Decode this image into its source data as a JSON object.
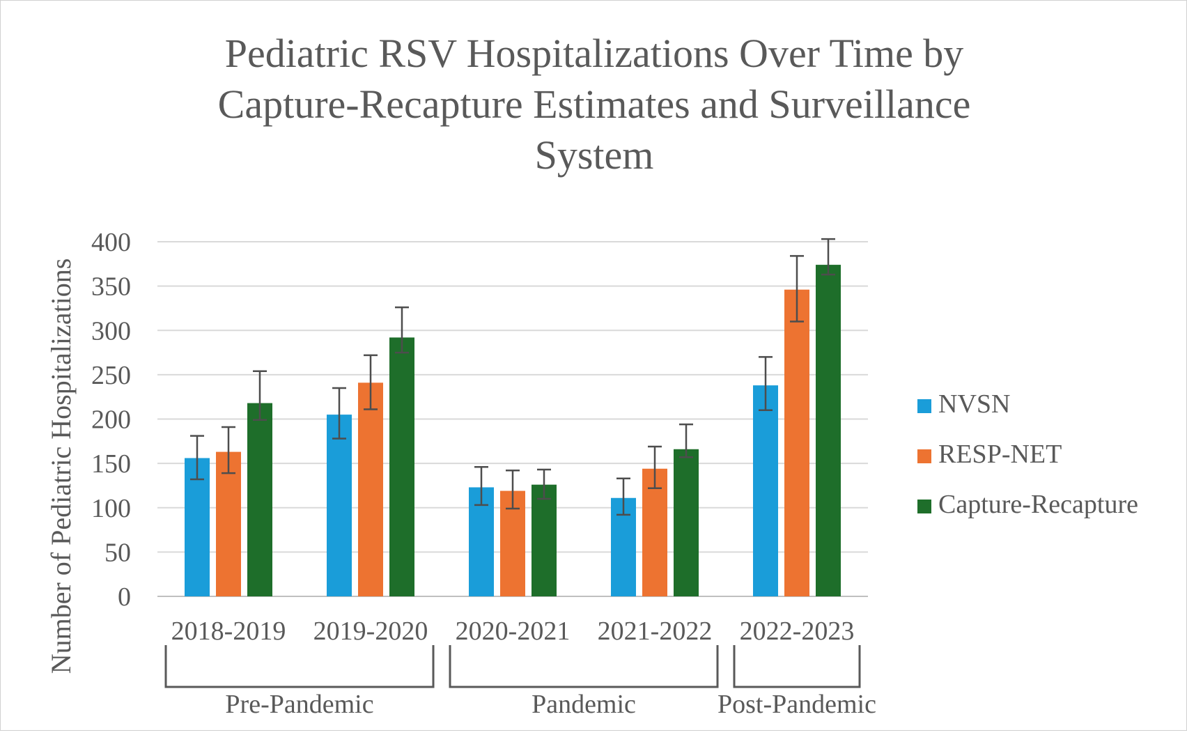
{
  "chart_data": {
    "type": "bar",
    "title_lines": [
      "Pediatric RSV Hospitalizations Over Time by",
      "Capture-Recapture Estimates and Surveillance",
      "System"
    ],
    "ylabel": "Number of Pediatric Hospitalizations",
    "xlabel": "",
    "ylim": [
      0,
      400
    ],
    "yticks": [
      0,
      50,
      100,
      150,
      200,
      250,
      300,
      350,
      400
    ],
    "grid": true,
    "legend_position": "right",
    "categories": [
      "2018-2019",
      "2019-2020",
      "2020-2021",
      "2021-2022",
      "2022-2023"
    ],
    "series": [
      {
        "name": "NVSN",
        "color": "#1a9dd9",
        "values": [
          156,
          205,
          123,
          111,
          238
        ],
        "err_low": [
          132,
          178,
          103,
          92,
          210
        ],
        "err_high": [
          181,
          235,
          146,
          133,
          270
        ]
      },
      {
        "name": "RESP-NET",
        "color": "#ed7331",
        "values": [
          163,
          241,
          119,
          144,
          346
        ],
        "err_low": [
          139,
          211,
          99,
          122,
          310
        ],
        "err_high": [
          191,
          272,
          142,
          169,
          384
        ]
      },
      {
        "name": "Capture-Recapture",
        "color": "#1e6e2a",
        "values": [
          218,
          292,
          126,
          166,
          374
        ],
        "err_low": [
          199,
          275,
          110,
          157,
          363
        ],
        "err_high": [
          254,
          326,
          143,
          194,
          403
        ]
      }
    ],
    "groups": [
      {
        "label": "Pre-Pandemic",
        "categories": [
          "2018-2019",
          "2019-2020"
        ]
      },
      {
        "label": "Pandemic",
        "categories": [
          "2020-2021",
          "2021-2022"
        ]
      },
      {
        "label": "Post-Pandemic",
        "categories": [
          "2022-2023"
        ]
      }
    ]
  }
}
